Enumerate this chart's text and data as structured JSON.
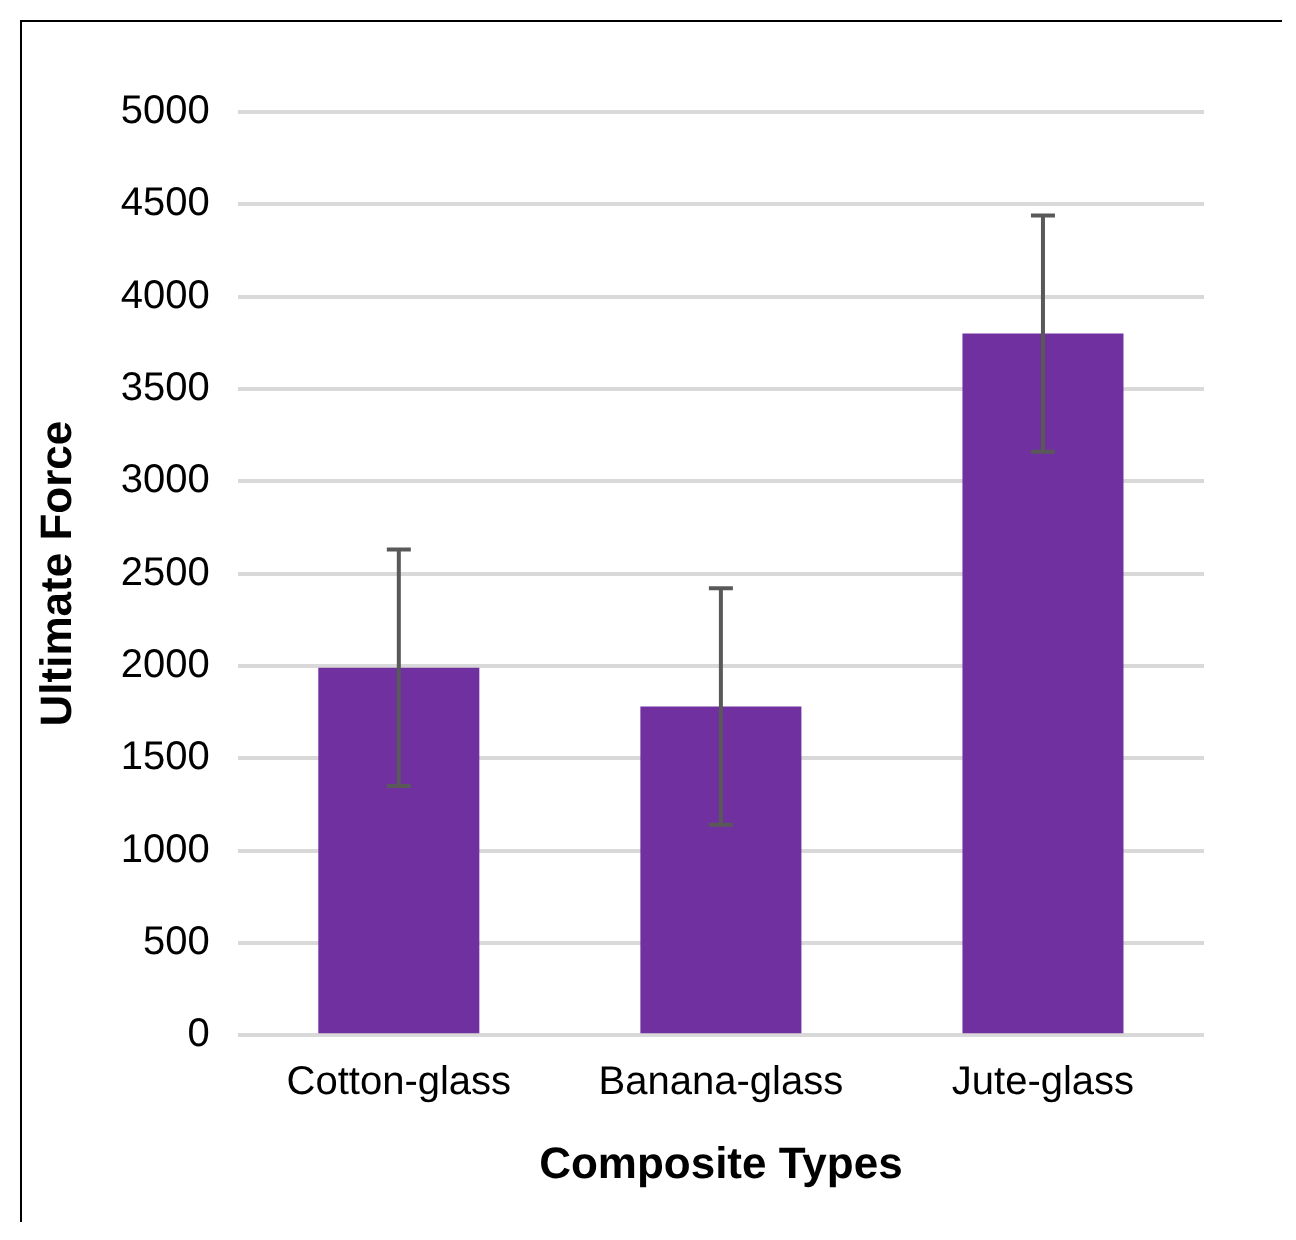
{
  "chart_data": {
    "type": "bar",
    "xlabel": "Composite Types",
    "ylabel": "Ultimate Force",
    "categories": [
      "Cotton-glass",
      "Banana-glass",
      "Jute-glass"
    ],
    "values": [
      1990,
      1780,
      3800
    ],
    "errors": [
      640,
      640,
      640
    ],
    "color": "#7030a0",
    "ylim": [
      0,
      5000
    ],
    "yticks": [
      0,
      500,
      1000,
      1500,
      2000,
      2500,
      3000,
      3500,
      4000,
      4500,
      5000
    ],
    "grid": "y"
  }
}
